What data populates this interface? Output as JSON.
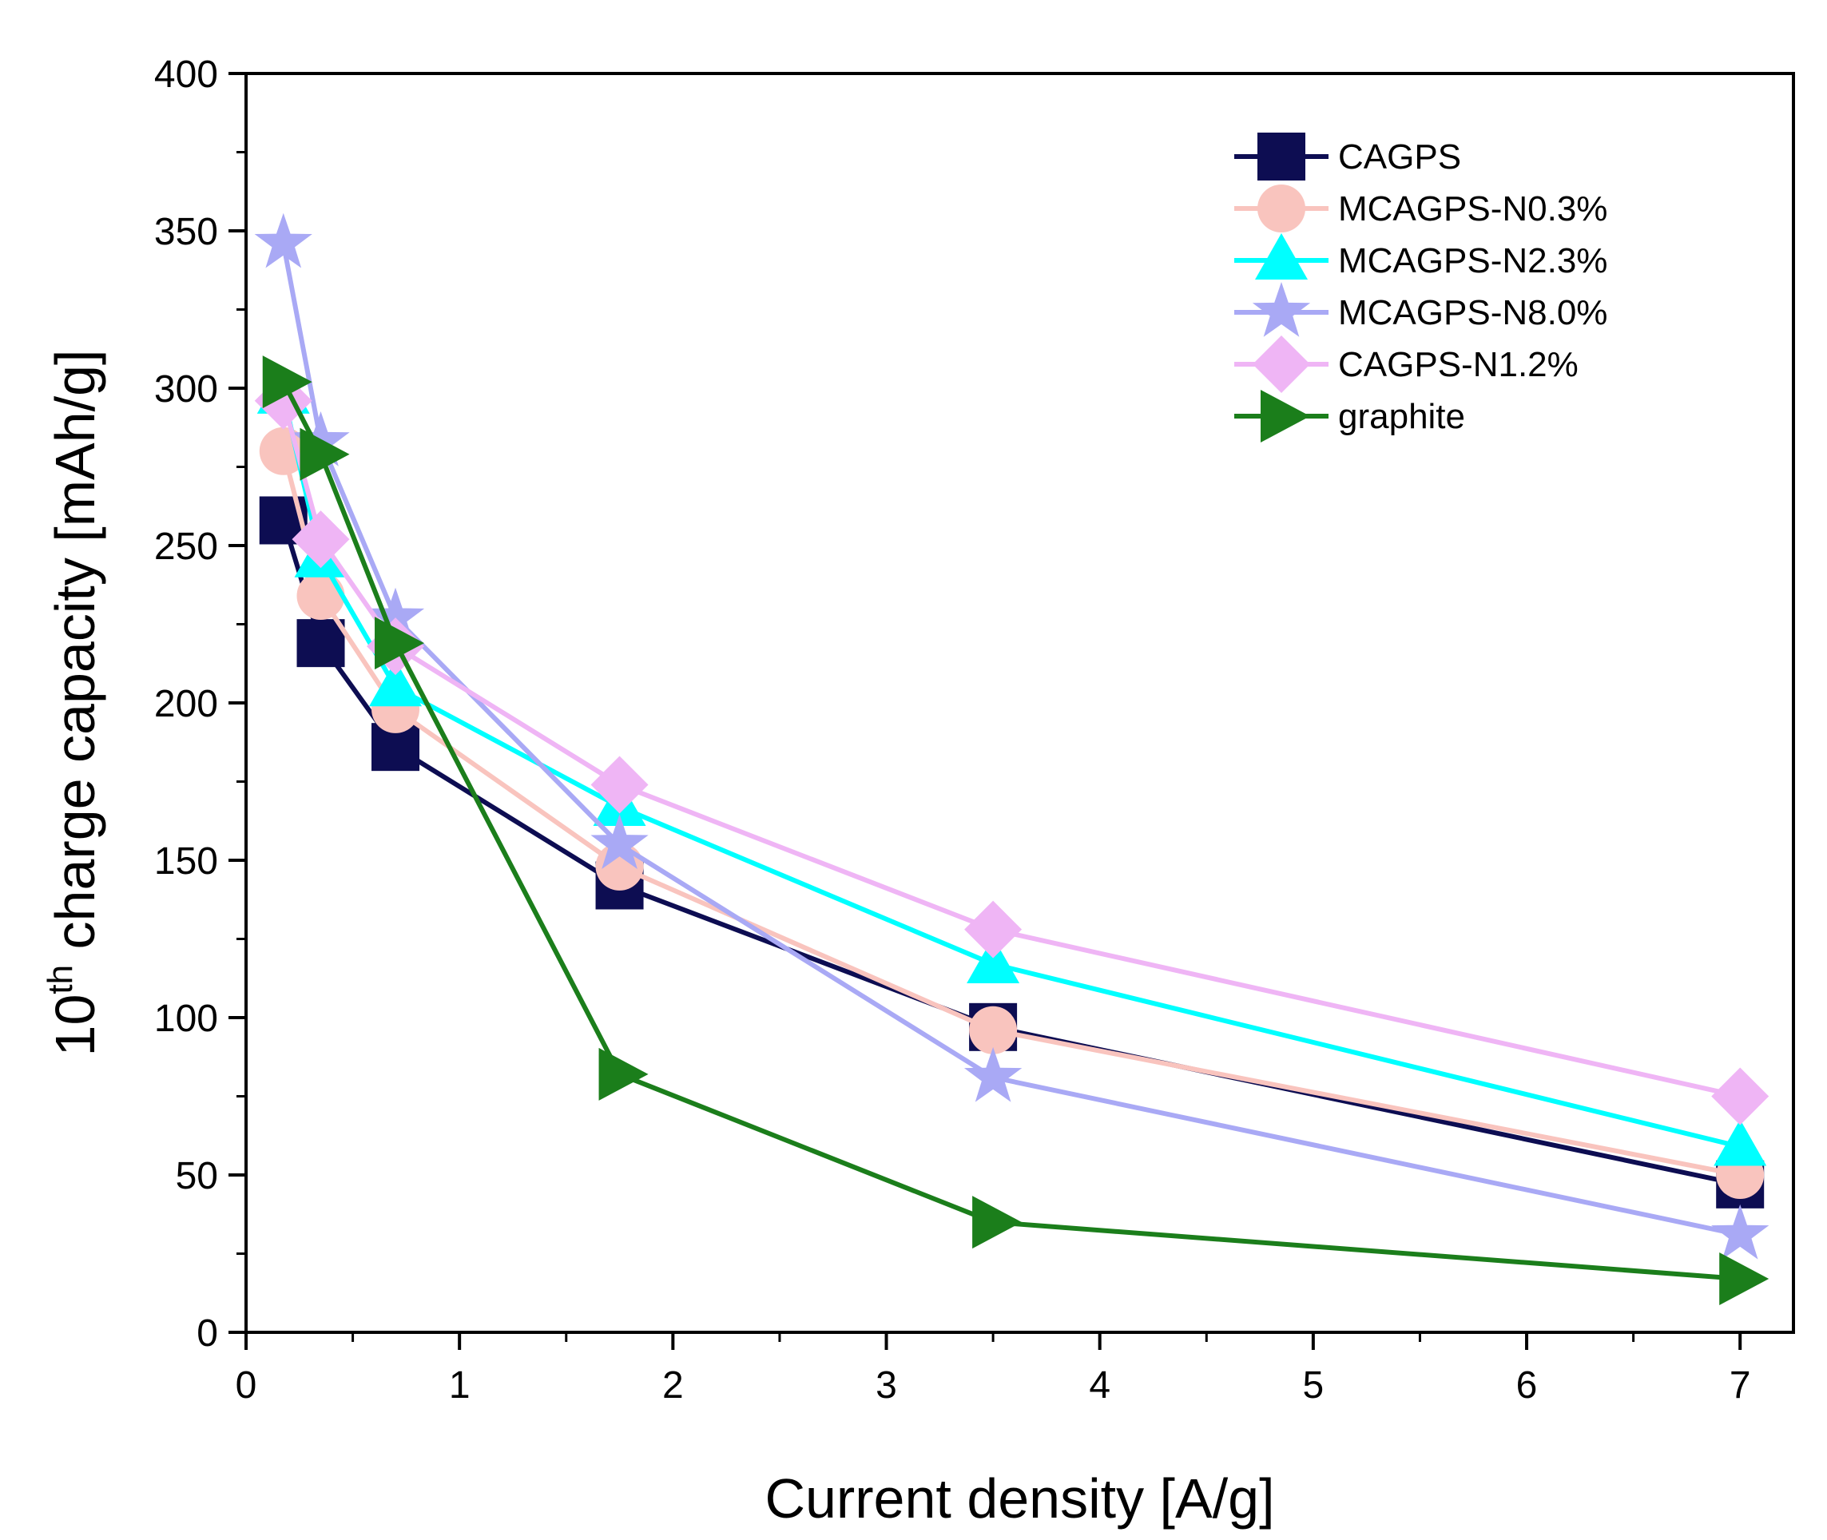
{
  "chart_data": {
    "type": "line",
    "title": "",
    "xlabel": "Current density [A/g]",
    "ylabel": {
      "prefix": "10",
      "superscript": "th",
      "suffix": " charge capacity [mAh/g]"
    },
    "xlim": [
      0,
      7.25
    ],
    "ylim": [
      0,
      400
    ],
    "x_ticks": [
      0,
      1,
      2,
      3,
      4,
      5,
      6,
      7
    ],
    "y_ticks": [
      0,
      50,
      100,
      150,
      200,
      250,
      300,
      350,
      400
    ],
    "x_tick_labels": [
      "0",
      "1",
      "2",
      "3",
      "4",
      "5",
      "6",
      "7"
    ],
    "y_tick_labels": [
      "0",
      "50",
      "100",
      "150",
      "200",
      "250",
      "300",
      "350",
      "400"
    ],
    "grid": false,
    "legend_position": "top-right",
    "series": [
      {
        "name": "CAGPS",
        "color": "#0d0d52",
        "marker": "square",
        "x": [
          0.175,
          0.35,
          0.7,
          1.75,
          3.5,
          7
        ],
        "y": [
          258,
          219,
          186,
          142,
          97,
          47
        ]
      },
      {
        "name": "MCAGPS-N0.3%",
        "color": "#f9c4be",
        "marker": "circle",
        "x": [
          0.175,
          0.35,
          0.7,
          1.75,
          3.5,
          7
        ],
        "y": [
          280,
          234,
          198,
          148,
          96,
          50
        ]
      },
      {
        "name": "MCAGPS-N2.3%",
        "color": "#00ffff",
        "marker": "triangle-up",
        "x": [
          0.175,
          0.35,
          0.7,
          1.75,
          3.5,
          7
        ],
        "y": [
          298,
          246,
          205,
          167,
          117,
          59
        ]
      },
      {
        "name": "MCAGPS-N8.0%",
        "color": "#a9a9f5",
        "marker": "star",
        "x": [
          0.175,
          0.35,
          0.7,
          1.75,
          3.5,
          7
        ],
        "y": [
          346,
          283,
          227,
          155,
          81,
          31
        ]
      },
      {
        "name": "CAGPS-N1.2%",
        "color": "#efb5f5",
        "marker": "diamond",
        "x": [
          0.175,
          0.35,
          0.7,
          1.75,
          3.5,
          7
        ],
        "y": [
          296,
          252,
          218,
          174,
          128,
          75
        ]
      },
      {
        "name": "graphite",
        "color": "#1b7e1b",
        "marker": "triangle-right",
        "x": [
          0.175,
          0.35,
          0.7,
          1.75,
          3.5,
          7
        ],
        "y": [
          302,
          279,
          219,
          82,
          35,
          17
        ]
      }
    ]
  }
}
